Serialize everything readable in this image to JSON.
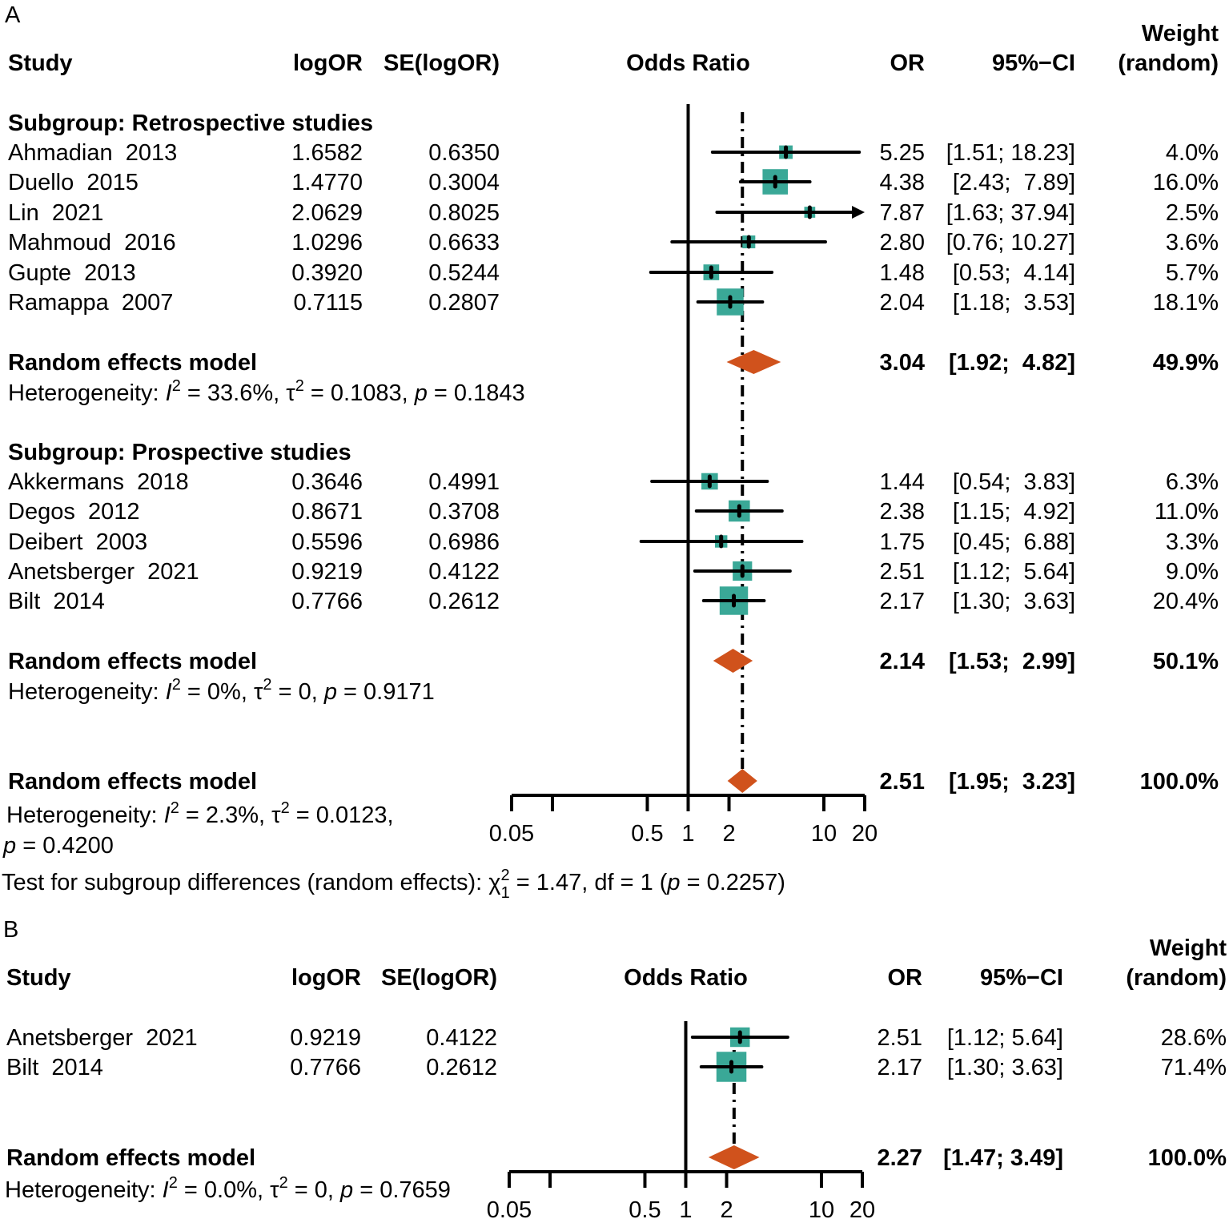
{
  "colors": {
    "box": "#3aa897",
    "diamond": "#d0521c",
    "line": "#000000"
  },
  "chart_data": [
    {
      "type": "forest",
      "panel_label": "A",
      "scale": "log",
      "xlim": [
        0.05,
        20
      ],
      "ticks": [
        0.05,
        0.1,
        0.5,
        1,
        2,
        10,
        20
      ],
      "tick_labels": [
        "0.05",
        "",
        "0.5",
        "1",
        "2",
        "10",
        "20"
      ],
      "xlabel": "Odds Ratio",
      "headers": {
        "study": "Study",
        "logor": "logOR",
        "se": "SE(logOR)",
        "or": "OR",
        "ci": "95%−CI",
        "weight1": "Weight",
        "weight2": "(random)"
      },
      "subgroups": [
        {
          "title": "Subgroup: Retrospective studies",
          "studies": [
            {
              "name": "Ahmadian  2013",
              "logor": "1.6582",
              "se": "0.6350",
              "or": 5.25,
              "lo": 1.51,
              "hi": 18.23,
              "or_text": "5.25",
              "ci_text": "[1.51; 18.23]",
              "weight": 4.0,
              "weight_text": "4.0%"
            },
            {
              "name": "Duello  2015",
              "logor": "1.4770",
              "se": "0.3004",
              "or": 4.38,
              "lo": 2.43,
              "hi": 7.89,
              "or_text": "4.38",
              "ci_text": "[2.43;  7.89]",
              "weight": 16.0,
              "weight_text": "16.0%"
            },
            {
              "name": "Lin  2021",
              "logor": "2.0629",
              "se": "0.8025",
              "or": 7.87,
              "lo": 1.63,
              "hi": 37.94,
              "or_text": "7.87",
              "ci_text": "[1.63; 37.94]",
              "weight": 2.5,
              "weight_text": "2.5%"
            },
            {
              "name": "Mahmoud  2016",
              "logor": "1.0296",
              "se": "0.6633",
              "or": 2.8,
              "lo": 0.76,
              "hi": 10.27,
              "or_text": "2.80",
              "ci_text": "[0.76; 10.27]",
              "weight": 3.6,
              "weight_text": "3.6%"
            },
            {
              "name": "Gupte  2013",
              "logor": "0.3920",
              "se": "0.5244",
              "or": 1.48,
              "lo": 0.53,
              "hi": 4.14,
              "or_text": "1.48",
              "ci_text": "[0.53;  4.14]",
              "weight": 5.7,
              "weight_text": "5.7%"
            },
            {
              "name": "Ramappa  2007",
              "logor": "0.7115",
              "se": "0.2807",
              "or": 2.04,
              "lo": 1.18,
              "hi": 3.53,
              "or_text": "2.04",
              "ci_text": "[1.18;  3.53]",
              "weight": 18.1,
              "weight_text": "18.1%"
            }
          ],
          "model": {
            "label": "Random effects model",
            "or": 3.04,
            "lo": 1.92,
            "hi": 4.82,
            "or_text": "3.04",
            "ci_text": "[1.92;  4.82]",
            "weight_text": "49.9%"
          },
          "het": {
            "prefix": "Heterogeneity: ",
            "I": "I",
            "I2": " = 33.6%, τ",
            "tau2": " = 0.1083, ",
            "p": "p",
            "pval": " = 0.1843",
            "sup": "2"
          }
        },
        {
          "title": "Subgroup: Prospective studies",
          "studies": [
            {
              "name": "Akkermans  2018",
              "logor": "0.3646",
              "se": "0.4991",
              "or": 1.44,
              "lo": 0.54,
              "hi": 3.83,
              "or_text": "1.44",
              "ci_text": "[0.54;  3.83]",
              "weight": 6.3,
              "weight_text": "6.3%"
            },
            {
              "name": "Degos  2012",
              "logor": "0.8671",
              "se": "0.3708",
              "or": 2.38,
              "lo": 1.15,
              "hi": 4.92,
              "or_text": "2.38",
              "ci_text": "[1.15;  4.92]",
              "weight": 11.0,
              "weight_text": "11.0%"
            },
            {
              "name": "Deibert  2003",
              "logor": "0.5596",
              "se": "0.6986",
              "or": 1.75,
              "lo": 0.45,
              "hi": 6.88,
              "or_text": "1.75",
              "ci_text": "[0.45;  6.88]",
              "weight": 3.3,
              "weight_text": "3.3%"
            },
            {
              "name": "Anetsberger  2021",
              "logor": "0.9219",
              "se": "0.4122",
              "or": 2.51,
              "lo": 1.12,
              "hi": 5.64,
              "or_text": "2.51",
              "ci_text": "[1.12;  5.64]",
              "weight": 9.0,
              "weight_text": "9.0%"
            },
            {
              "name": "Bilt  2014",
              "logor": "0.7766",
              "se": "0.2612",
              "or": 2.17,
              "lo": 1.3,
              "hi": 3.63,
              "or_text": "2.17",
              "ci_text": "[1.30;  3.63]",
              "weight": 20.4,
              "weight_text": "20.4%"
            }
          ],
          "model": {
            "label": "Random effects model",
            "or": 2.14,
            "lo": 1.53,
            "hi": 2.99,
            "or_text": "2.14",
            "ci_text": "[1.53;  2.99]",
            "weight_text": "50.1%"
          },
          "het": {
            "prefix": "Heterogeneity: ",
            "I": "I",
            "I2": " = 0%, τ",
            "tau2": " = 0, ",
            "p": "p",
            "pval": " = 0.9171",
            "sup": "2"
          }
        }
      ],
      "overall": {
        "label": "Random effects model",
        "or": 2.51,
        "lo": 1.95,
        "hi": 3.23,
        "or_text": "2.51",
        "ci_text": "[1.95;  3.23]",
        "weight_text": "100.0%",
        "het": {
          "prefix": "Heterogeneity: ",
          "I": "I",
          "I2": " = 2.3%, τ",
          "tau2": " = 0.0123,",
          "p": "p",
          "pval": " = 0.4200",
          "sup": "2"
        }
      },
      "subgroup_test": {
        "prefix": "Test for subgroup differences (random effects): ",
        "chi": "χ",
        "sup": "2",
        "sub": "1",
        "rest": " = 1.47, df = 1 (",
        "p": "p",
        "pval": " = 0.2257)"
      }
    },
    {
      "type": "forest",
      "panel_label": "B",
      "scale": "log",
      "xlim": [
        0.05,
        20
      ],
      "ticks": [
        0.05,
        0.1,
        0.5,
        1,
        2,
        10,
        20
      ],
      "tick_labels": [
        "0.05",
        "",
        "0.5",
        "1",
        "2",
        "10",
        "20"
      ],
      "xlabel": "Odds Ratio",
      "headers": {
        "study": "Study",
        "logor": "logOR",
        "se": "SE(logOR)",
        "or": "OR",
        "ci": "95%−CI",
        "weight1": "Weight",
        "weight2": "(random)"
      },
      "studies": [
        {
          "name": "Anetsberger  2021",
          "logor": "0.9219",
          "se": "0.4122",
          "or": 2.51,
          "lo": 1.12,
          "hi": 5.64,
          "or_text": "2.51",
          "ci_text": "[1.12; 5.64]",
          "weight": 28.6,
          "weight_text": "28.6%"
        },
        {
          "name": "Bilt  2014",
          "logor": "0.7766",
          "se": "0.2612",
          "or": 2.17,
          "lo": 1.3,
          "hi": 3.63,
          "or_text": "2.17",
          "ci_text": "[1.30; 3.63]",
          "weight": 71.4,
          "weight_text": "71.4%"
        }
      ],
      "overall": {
        "label": "Random effects model",
        "or": 2.27,
        "lo": 1.47,
        "hi": 3.49,
        "or_text": "2.27",
        "ci_text": "[1.47; 3.49]",
        "weight_text": "100.0%",
        "het": {
          "prefix": "Heterogeneity: ",
          "I": "I",
          "I2": " = 0.0%, τ",
          "tau2": " = 0, ",
          "p": "p",
          "pval": " = 0.7659",
          "sup": "2"
        }
      }
    }
  ]
}
